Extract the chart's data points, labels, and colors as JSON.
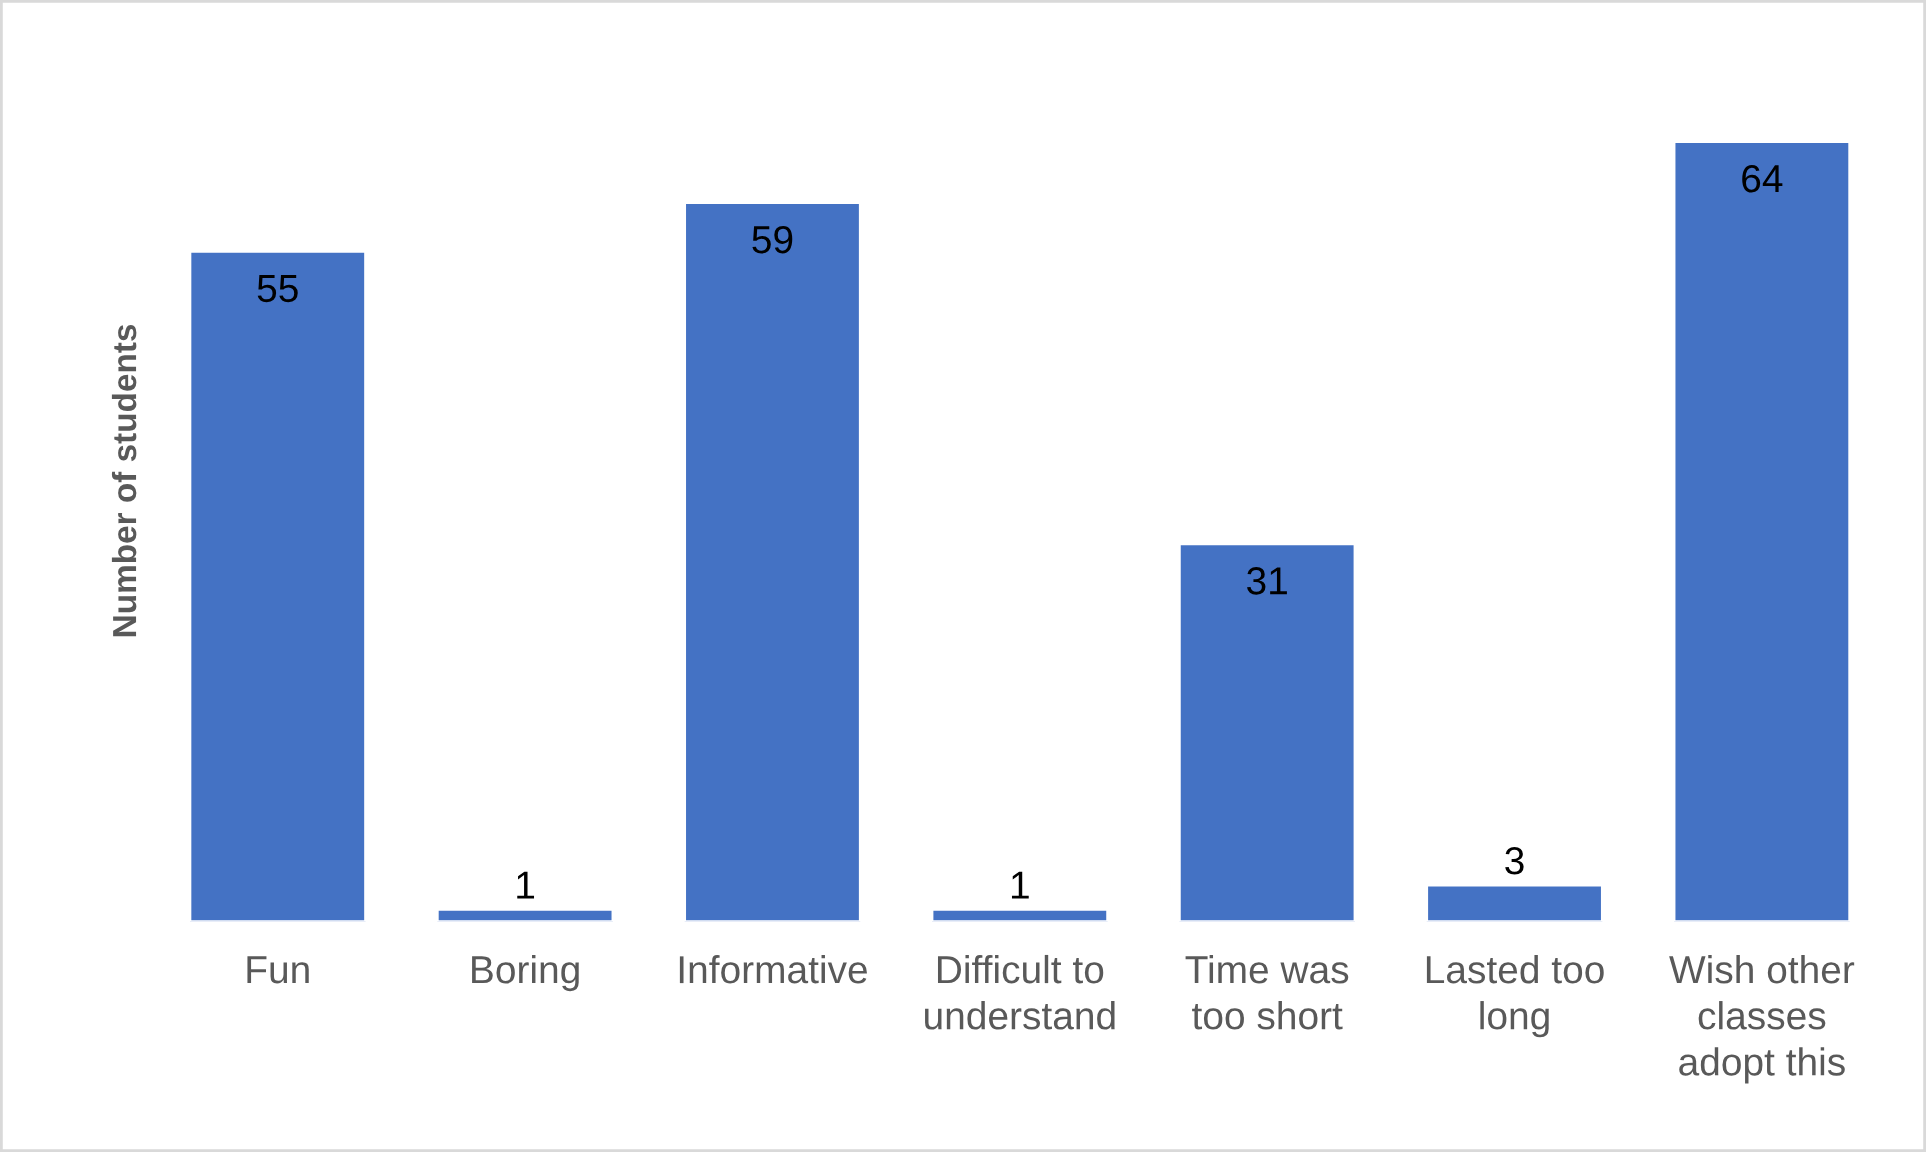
{
  "chart_data": {
    "type": "bar",
    "ylabel": "Number of students",
    "categories": [
      "Fun",
      "Boring",
      "Informative",
      "Difficult to\nunderstand",
      "Time was\ntoo short",
      "Lasted too\nlong",
      "Wish other\nclasses\nadopt this"
    ],
    "values": [
      55,
      1,
      59,
      1,
      31,
      3,
      64
    ],
    "color": "#4472c4",
    "data_labels": true,
    "tick_labels": "x"
  }
}
